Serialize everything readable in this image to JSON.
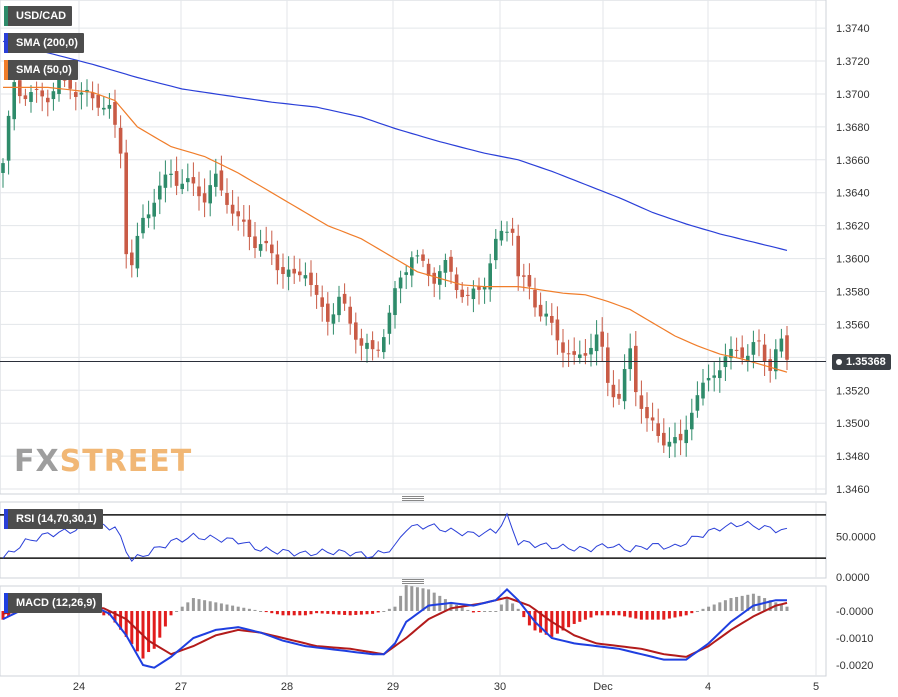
{
  "main_legend": {
    "pair": "USD/CAD",
    "sma200": "SMA (200,0)",
    "sma50": "SMA (50,0)"
  },
  "price_tag": "1.35368",
  "watermark": {
    "part1": "FX",
    "part2": "STREET"
  },
  "rsi_legend": "RSI (14,70,30,1)",
  "macd_legend": "MACD (12,26,9)",
  "colors": {
    "up_candle": "#2e8b6a",
    "down_candle": "#c95b46",
    "sma200": "#2a3fd8",
    "sma50": "#f07d2a",
    "rsi_line": "#2a3fd8",
    "macd_line": "#1f3fe0",
    "signal_line": "#b31b1b",
    "hist_pos": "#9a9a9a",
    "hist_neg": "#e11d1d"
  },
  "chart_data": [
    {
      "type": "candlestick",
      "title": "USD/CAD",
      "x_tick_labels": [
        "24",
        "27",
        "28",
        "29",
        "30",
        "Dec",
        "4",
        "5"
      ],
      "y_tick_labels": [
        "1.3460",
        "1.3480",
        "1.3500",
        "1.3520",
        "1.3540",
        "1.3560",
        "1.3580",
        "1.3600",
        "1.3620",
        "1.3640",
        "1.3660",
        "1.3680",
        "1.3700",
        "1.3720",
        "1.3740"
      ],
      "ylim": [
        1.3457,
        1.3751
      ],
      "current_price": 1.35368,
      "price_anchors": [
        [
          0,
          1.3655
        ],
        [
          1,
          1.368
        ],
        [
          2,
          1.3705
        ],
        [
          4,
          1.3703
        ],
        [
          8,
          1.3697
        ],
        [
          12,
          1.3708
        ],
        [
          16,
          1.3696
        ],
        [
          19,
          1.3688
        ],
        [
          21,
          1.3668
        ],
        [
          22,
          1.361
        ],
        [
          23,
          1.3598
        ],
        [
          25,
          1.3622
        ],
        [
          28,
          1.364
        ],
        [
          30,
          1.3655
        ],
        [
          33,
          1.3645
        ],
        [
          36,
          1.3635
        ],
        [
          38,
          1.3648
        ],
        [
          40,
          1.364
        ],
        [
          42,
          1.3622
        ],
        [
          45,
          1.3608
        ],
        [
          48,
          1.3605
        ],
        [
          50,
          1.3595
        ],
        [
          52,
          1.3585
        ],
        [
          54,
          1.3592
        ],
        [
          56,
          1.3575
        ],
        [
          58,
          1.3568
        ],
        [
          60,
          1.3574
        ],
        [
          62,
          1.3558
        ],
        [
          64,
          1.3548
        ],
        [
          66,
          1.3545
        ],
        [
          67,
          1.355
        ],
        [
          69,
          1.3565
        ],
        [
          71,
          1.3585
        ],
        [
          73,
          1.3603
        ],
        [
          75,
          1.3598
        ],
        [
          77,
          1.359
        ],
        [
          79,
          1.3592
        ],
        [
          81,
          1.3583
        ],
        [
          83,
          1.3577
        ],
        [
          86,
          1.3588
        ],
        [
          88,
          1.3605
        ],
        [
          90,
          1.3618
        ],
        [
          91,
          1.362
        ],
        [
          92,
          1.359
        ],
        [
          94,
          1.3585
        ],
        [
          96,
          1.3565
        ],
        [
          98,
          1.3555
        ],
        [
          100,
          1.3548
        ],
        [
          102,
          1.354
        ],
        [
          104,
          1.3545
        ],
        [
          106,
          1.3548
        ],
        [
          107,
          1.354
        ],
        [
          108,
          1.3525
        ],
        [
          110,
          1.3518
        ],
        [
          112,
          1.3545
        ],
        [
          113,
          1.3522
        ],
        [
          115,
          1.3498
        ],
        [
          117,
          1.3492
        ],
        [
          119,
          1.3493
        ],
        [
          121,
          1.3488
        ],
        [
          123,
          1.3508
        ],
        [
          125,
          1.3518
        ],
        [
          127,
          1.3535
        ],
        [
          129,
          1.354
        ],
        [
          131,
          1.3545
        ],
        [
          133,
          1.3538
        ],
        [
          135,
          1.3548
        ],
        [
          137,
          1.3538
        ],
        [
          138,
          1.3545
        ],
        [
          139,
          1.3548
        ],
        [
          140,
          1.3538
        ]
      ],
      "sma200": [
        [
          0,
          1.3732
        ],
        [
          8,
          1.3725
        ],
        [
          16,
          1.3718
        ],
        [
          24,
          1.371
        ],
        [
          32,
          1.3703
        ],
        [
          40,
          1.3699
        ],
        [
          48,
          1.3695
        ],
        [
          56,
          1.3692
        ],
        [
          64,
          1.3686
        ],
        [
          70,
          1.3679
        ],
        [
          78,
          1.3671
        ],
        [
          86,
          1.3664
        ],
        [
          92,
          1.366
        ],
        [
          98,
          1.3653
        ],
        [
          104,
          1.3645
        ],
        [
          110,
          1.3637
        ],
        [
          116,
          1.3628
        ],
        [
          122,
          1.3621
        ],
        [
          128,
          1.3615
        ],
        [
          134,
          1.361
        ],
        [
          140,
          1.3605
        ]
      ],
      "sma50": [
        [
          0,
          1.3704
        ],
        [
          8,
          1.3704
        ],
        [
          16,
          1.3701
        ],
        [
          20,
          1.3696
        ],
        [
          24,
          1.368
        ],
        [
          30,
          1.3668
        ],
        [
          36,
          1.3662
        ],
        [
          42,
          1.3652
        ],
        [
          48,
          1.364
        ],
        [
          54,
          1.3628
        ],
        [
          58,
          1.362
        ],
        [
          64,
          1.3612
        ],
        [
          70,
          1.36
        ],
        [
          74,
          1.3592
        ],
        [
          78,
          1.3588
        ],
        [
          82,
          1.3584
        ],
        [
          86,
          1.3583
        ],
        [
          92,
          1.3583
        ],
        [
          96,
          1.3581
        ],
        [
          100,
          1.3579
        ],
        [
          104,
          1.3578
        ],
        [
          108,
          1.3574
        ],
        [
          112,
          1.3569
        ],
        [
          116,
          1.3561
        ],
        [
          120,
          1.3553
        ],
        [
          124,
          1.3547
        ],
        [
          128,
          1.3542
        ],
        [
          132,
          1.3539
        ],
        [
          136,
          1.3535
        ],
        [
          140,
          1.3531
        ]
      ]
    },
    {
      "type": "line",
      "title": "RSI (14,70,30,1)",
      "y_tick_labels": [
        "50.0000"
      ],
      "overbought": 70,
      "oversold": 30,
      "values": [
        [
          0,
          30
        ],
        [
          4,
          45
        ],
        [
          8,
          52
        ],
        [
          12,
          55
        ],
        [
          16,
          62
        ],
        [
          20,
          58
        ],
        [
          23,
          28
        ],
        [
          26,
          35
        ],
        [
          30,
          45
        ],
        [
          34,
          50
        ],
        [
          38,
          48
        ],
        [
          42,
          46
        ],
        [
          46,
          38
        ],
        [
          50,
          36
        ],
        [
          54,
          34
        ],
        [
          58,
          36
        ],
        [
          62,
          35
        ],
        [
          66,
          32
        ],
        [
          70,
          40
        ],
        [
          72,
          58
        ],
        [
          76,
          60
        ],
        [
          80,
          55
        ],
        [
          84,
          52
        ],
        [
          88,
          55
        ],
        [
          90,
          68
        ],
        [
          92,
          45
        ],
        [
          96,
          42
        ],
        [
          100,
          40
        ],
        [
          104,
          38
        ],
        [
          108,
          42
        ],
        [
          112,
          38
        ],
        [
          116,
          42
        ],
        [
          120,
          40
        ],
        [
          124,
          50
        ],
        [
          128,
          58
        ],
        [
          132,
          62
        ],
        [
          136,
          58
        ],
        [
          140,
          55
        ]
      ]
    },
    {
      "type": "line",
      "title": "MACD (12,26,9)",
      "y_tick_labels": [
        "-0.0000",
        "-0.0010",
        "-0.0020"
      ],
      "macd": [
        [
          0,
          -0.0003
        ],
        [
          4,
          0.0001
        ],
        [
          8,
          0.0002
        ],
        [
          12,
          0.0003
        ],
        [
          16,
          0.0002
        ],
        [
          19,
          -0.0001
        ],
        [
          22,
          -0.0009
        ],
        [
          25,
          -0.002
        ],
        [
          27,
          -0.0021
        ],
        [
          30,
          -0.0017
        ],
        [
          34,
          -0.001
        ],
        [
          38,
          -0.0007
        ],
        [
          42,
          -0.0006
        ],
        [
          46,
          -0.0008
        ],
        [
          50,
          -0.0011
        ],
        [
          54,
          -0.0013
        ],
        [
          58,
          -0.0014
        ],
        [
          62,
          -0.0015
        ],
        [
          66,
          -0.0016
        ],
        [
          68,
          -0.0016
        ],
        [
          70,
          -0.0012
        ],
        [
          72,
          -0.0004
        ],
        [
          76,
          0.0002
        ],
        [
          80,
          0.0003
        ],
        [
          84,
          0.0002
        ],
        [
          88,
          0.0004
        ],
        [
          90,
          0.0008
        ],
        [
          92,
          0.0004
        ],
        [
          95,
          -0.0004
        ],
        [
          98,
          -0.001
        ],
        [
          102,
          -0.0012
        ],
        [
          106,
          -0.0013
        ],
        [
          110,
          -0.0014
        ],
        [
          114,
          -0.0016
        ],
        [
          118,
          -0.0018
        ],
        [
          122,
          -0.0018
        ],
        [
          126,
          -0.0012
        ],
        [
          130,
          -0.0004
        ],
        [
          134,
          0.0002
        ],
        [
          138,
          0.0004
        ],
        [
          140,
          0.0004
        ]
      ],
      "signal": [
        [
          0,
          -0.0001
        ],
        [
          6,
          0.0001
        ],
        [
          12,
          0.0002
        ],
        [
          18,
          0.0001
        ],
        [
          22,
          -0.0003
        ],
        [
          26,
          -0.0011
        ],
        [
          30,
          -0.0016
        ],
        [
          34,
          -0.0013
        ],
        [
          38,
          -0.0009
        ],
        [
          42,
          -0.0007
        ],
        [
          46,
          -0.0008
        ],
        [
          50,
          -0.001
        ],
        [
          56,
          -0.0013
        ],
        [
          62,
          -0.0014
        ],
        [
          68,
          -0.0016
        ],
        [
          72,
          -0.001
        ],
        [
          76,
          -0.0003
        ],
        [
          80,
          0.0001
        ],
        [
          86,
          0.0003
        ],
        [
          90,
          0.0005
        ],
        [
          94,
          0.0002
        ],
        [
          98,
          -0.0004
        ],
        [
          102,
          -0.0009
        ],
        [
          106,
          -0.0012
        ],
        [
          110,
          -0.0013
        ],
        [
          114,
          -0.0014
        ],
        [
          118,
          -0.0016
        ],
        [
          122,
          -0.0017
        ],
        [
          126,
          -0.0013
        ],
        [
          130,
          -0.0007
        ],
        [
          134,
          -0.0002
        ],
        [
          138,
          0.0002
        ],
        [
          140,
          0.0003
        ]
      ]
    }
  ]
}
